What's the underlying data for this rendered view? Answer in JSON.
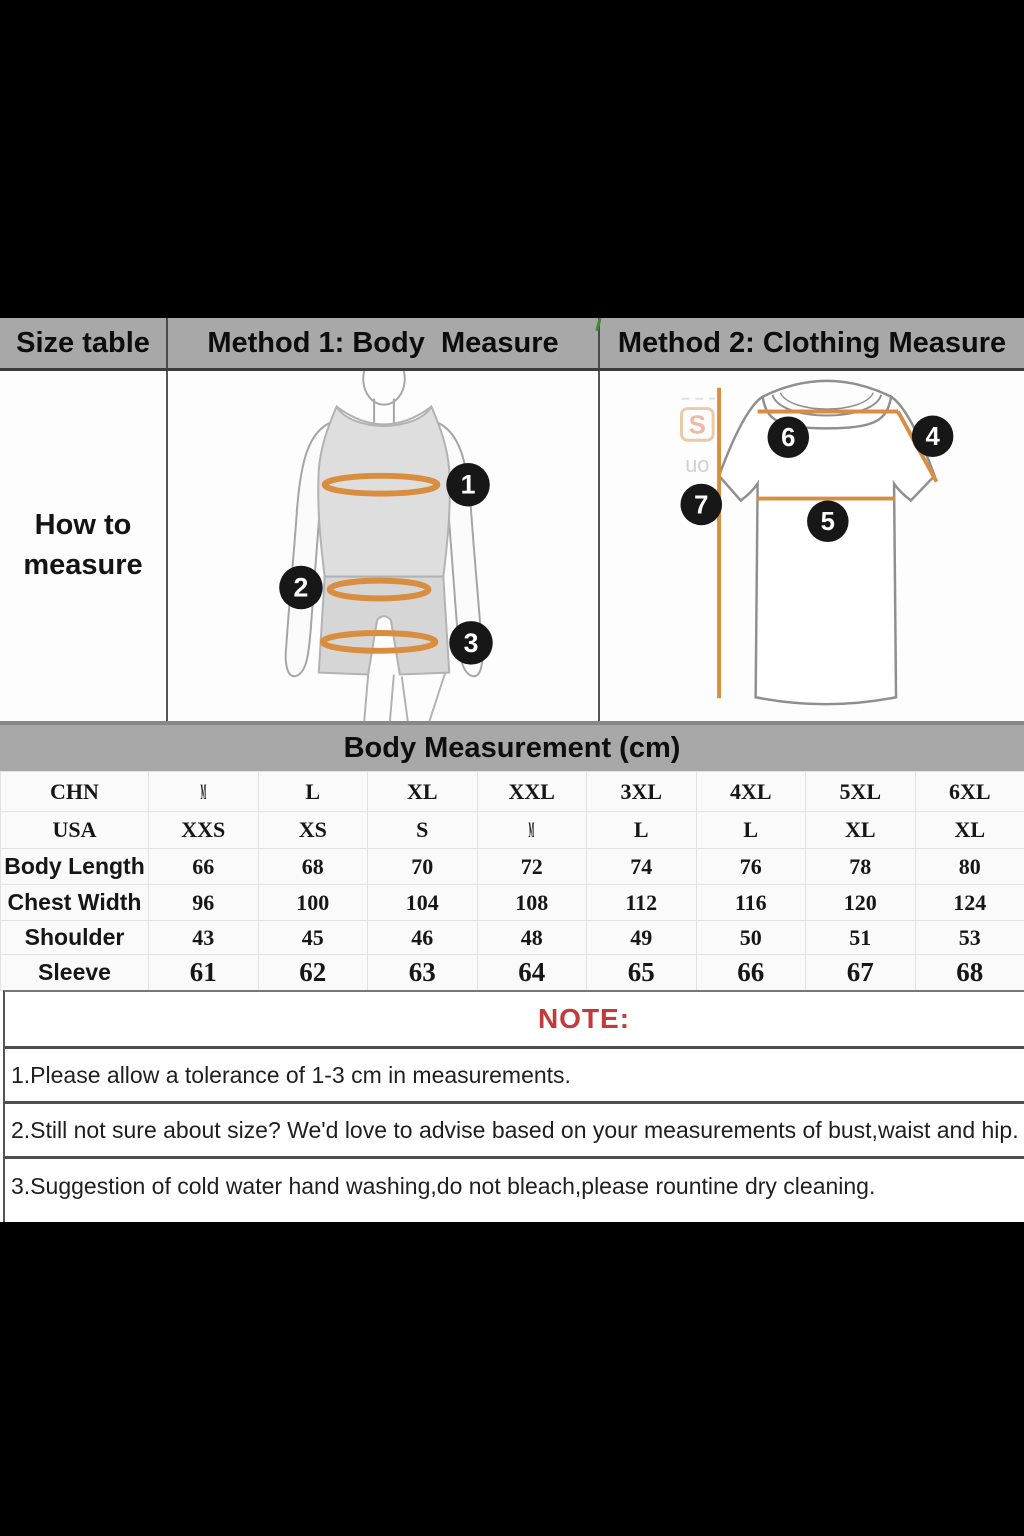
{
  "header": {
    "size_table_label": "Size table",
    "method1_label": "Method 1: Body  Measure",
    "method2_label": "Method 2: Clothing Measure"
  },
  "how_to_measure": {
    "line1": "How to",
    "line2": "measure"
  },
  "section_title": "Body Measurement (cm)",
  "markers": {
    "m1": "1",
    "m2": "2",
    "m3": "3",
    "m4": "4",
    "m5": "5",
    "m6": "6",
    "m7": "7"
  },
  "watermark": {
    "letter": "S",
    "text": "uo"
  },
  "size_table": {
    "rows": [
      {
        "label": "CHN",
        "values": [
          "M",
          "L",
          "XL",
          "XXL",
          "3XL",
          "4XL",
          "5XL",
          "6XL"
        ]
      },
      {
        "label": "USA",
        "values": [
          "XXS",
          "XS",
          "S",
          "M",
          "L",
          "L",
          "XL",
          "XL"
        ]
      },
      {
        "label": "Body Length",
        "values": [
          "66",
          "68",
          "70",
          "72",
          "74",
          "76",
          "78",
          "80"
        ]
      },
      {
        "label": "Chest Width",
        "values": [
          "96",
          "100",
          "104",
          "108",
          "112",
          "116",
          "120",
          "124"
        ]
      },
      {
        "label": "Shoulder",
        "values": [
          "43",
          "45",
          "46",
          "48",
          "49",
          "50",
          "51",
          "53"
        ]
      },
      {
        "label": "Sleeve",
        "values": [
          "61",
          "62",
          "63",
          "64",
          "65",
          "66",
          "67",
          "68"
        ]
      }
    ]
  },
  "notes": {
    "title": "NOTE:",
    "items": [
      "1.Please allow a tolerance of 1-3 cm in measurements.",
      "2.Still not sure about size? We'd love to advise based on your measurements of bust,waist and hip.",
      "3.Suggestion of cold water hand washing,do not bleach,please rountine dry cleaning."
    ]
  },
  "colors": {
    "measure_line_orange": "#D98E3F",
    "badge_black": "#171717",
    "note_red": "#C23A3C",
    "header_gray": "#A8A8A8"
  }
}
